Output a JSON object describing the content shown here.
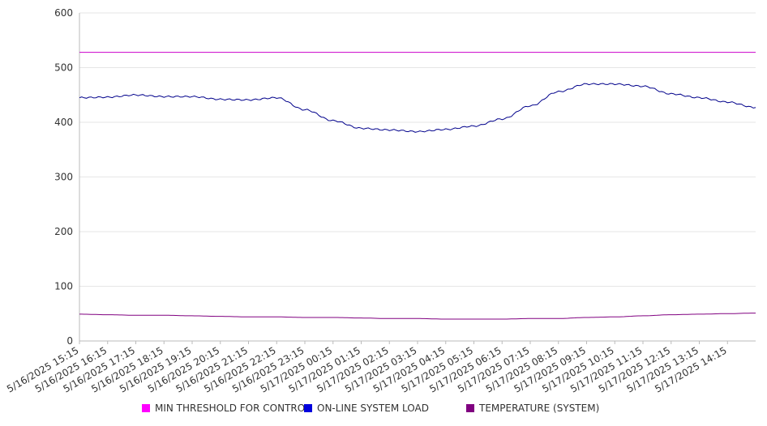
{
  "chart_data": {
    "type": "line",
    "title": "",
    "xlabel": "",
    "ylabel": "",
    "ylim": [
      0,
      600
    ],
    "y_ticks": [
      0,
      100,
      200,
      300,
      400,
      500,
      600
    ],
    "grid": "horizontal",
    "legend_placement": "bottom",
    "x_tick_labels": [
      "5/16/2025 15:15",
      "5/16/2025 16:15",
      "5/16/2025 17:15",
      "5/16/2025 18:15",
      "5/16/2025 19:15",
      "5/16/2025 20:15",
      "5/16/2025 21:15",
      "5/16/2025 22:15",
      "5/16/2025 23:15",
      "5/17/2025 00:15",
      "5/17/2025 01:15",
      "5/17/2025 02:15",
      "5/17/2025 03:15",
      "5/17/2025 04:15",
      "5/17/2025 05:15",
      "5/17/2025 06:15",
      "5/17/2025 07:15",
      "5/17/2025 08:15",
      "5/17/2025 09:15",
      "5/17/2025 10:15",
      "5/17/2025 11:15",
      "5/17/2025 12:15",
      "5/17/2025 13:15",
      "5/17/2025 14:15"
    ],
    "x": [
      "5/16/2025 15:15",
      "5/16/2025 16:15",
      "5/16/2025 17:15",
      "5/16/2025 18:15",
      "5/16/2025 19:15",
      "5/16/2025 20:15",
      "5/16/2025 21:15",
      "5/16/2025 22:15",
      "5/16/2025 23:15",
      "5/17/2025 00:15",
      "5/17/2025 01:15",
      "5/17/2025 02:15",
      "5/17/2025 03:15",
      "5/17/2025 04:15",
      "5/17/2025 05:15",
      "5/17/2025 06:15",
      "5/17/2025 07:15",
      "5/17/2025 08:15",
      "5/17/2025 09:15",
      "5/17/2025 10:15",
      "5/17/2025 11:15",
      "5/17/2025 12:15",
      "5/17/2025 13:15",
      "5/17/2025 14:15",
      "5/17/2025 15:00"
    ],
    "series": [
      {
        "name": "MIN THRESHOLD FOR CONTROL",
        "color": "#cc00cc",
        "values": [
          528,
          528,
          528,
          528,
          528,
          528,
          528,
          528,
          528,
          528,
          528,
          528,
          528,
          528,
          528,
          528,
          528,
          528,
          528,
          528,
          528,
          528,
          528,
          528,
          528
        ]
      },
      {
        "name": "ON-LINE SYSTEM LOAD",
        "color": "#00008b",
        "values": [
          445,
          446,
          450,
          447,
          447,
          442,
          441,
          445,
          423,
          403,
          389,
          386,
          383,
          387,
          393,
          406,
          430,
          456,
          470,
          470,
          466,
          452,
          445,
          437,
          427
        ]
      },
      {
        "name": "TEMPERATURE (SYSTEM)",
        "color": "#800080",
        "values": [
          49,
          48,
          47,
          47,
          46,
          45,
          44,
          44,
          43,
          43,
          42,
          41,
          41,
          40,
          40,
          40,
          41,
          41,
          43,
          44,
          46,
          48,
          49,
          50,
          51
        ]
      }
    ]
  }
}
